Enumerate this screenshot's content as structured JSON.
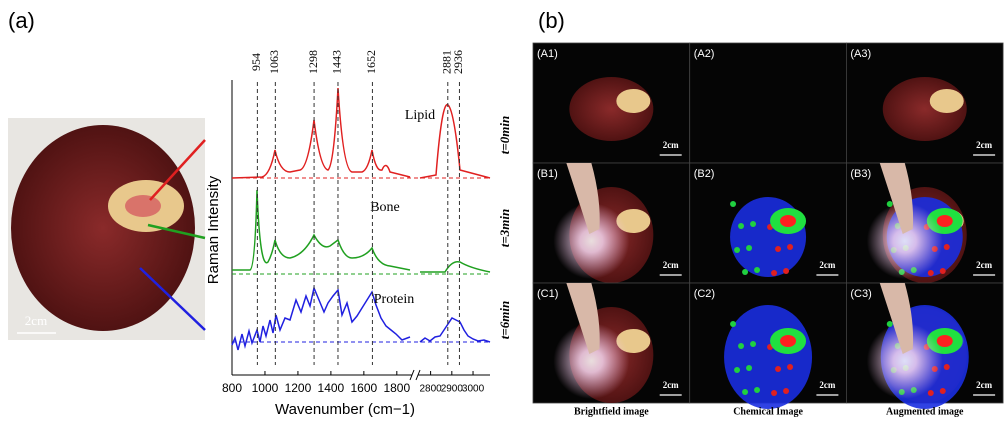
{
  "panel_a": {
    "label": "(a)",
    "photo_scale": "2cm",
    "ylabel": "Raman Intensity",
    "xlabel": "Wavenumber (cm−1)",
    "xlim": [
      800,
      1880
    ],
    "x2lim": [
      2750,
      3080
    ],
    "xticks": [
      800,
      1000,
      1200,
      1400,
      1600,
      1800
    ],
    "x2ticks": [
      2800,
      2900,
      3000
    ],
    "peaks": [
      954,
      1063,
      1298,
      1443,
      1652,
      2881,
      2936
    ],
    "spectra_labels": [
      "Lipid",
      "Bone",
      "Protein"
    ],
    "times": [
      "t=0min",
      "t=3min",
      "t=6min"
    ]
  },
  "panel_b": {
    "label": "(b)",
    "tiles": [
      {
        "label": "(A1)",
        "scale": "2cm"
      },
      {
        "label": "(A2)"
      },
      {
        "label": "(A3)",
        "scale": "2cm"
      },
      {
        "label": "(B1)",
        "scale": "2cm"
      },
      {
        "label": "(B2)",
        "scale": "2cm"
      },
      {
        "label": "(B3)",
        "scale": "2cm"
      },
      {
        "label": "(C1)",
        "scale": "2cm"
      },
      {
        "label": "(C2)",
        "scale": "2cm"
      },
      {
        "label": "(C3)",
        "scale": "2cm"
      }
    ],
    "columns": [
      "Brightfield image",
      "Chemical Image",
      "Augmented image"
    ]
  }
}
